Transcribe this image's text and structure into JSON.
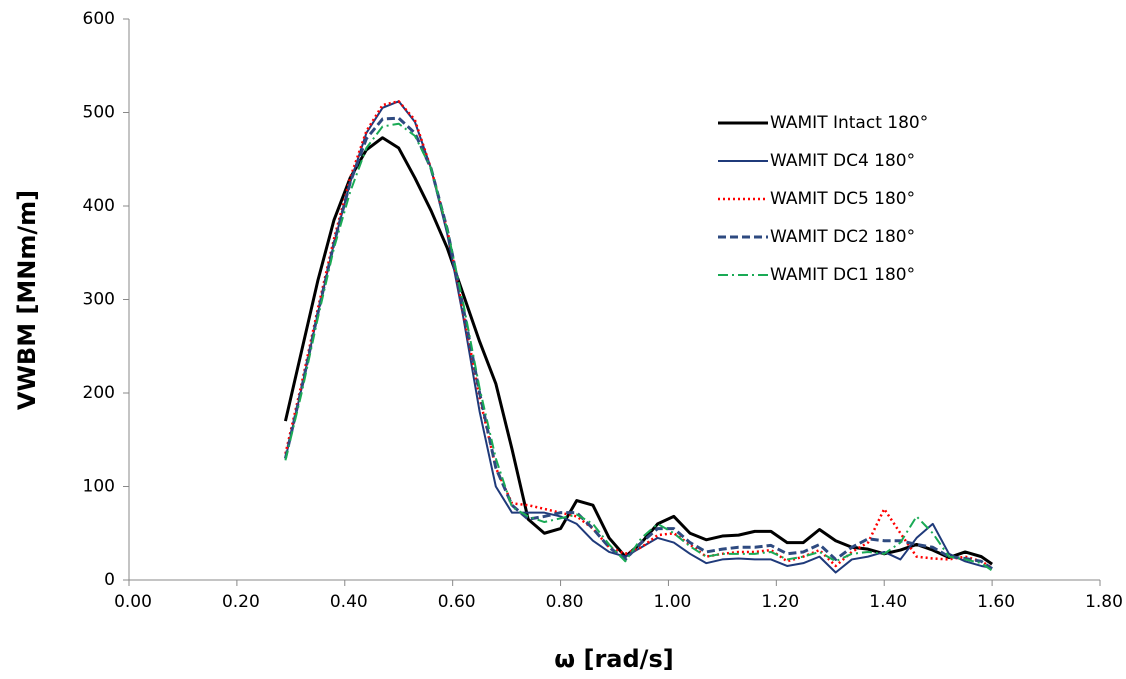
{
  "chart_data": {
    "type": "line",
    "x_label": "ω [rad/s]",
    "y_label": "VWBM [MNm/m]",
    "xlim": [
      0,
      1.8
    ],
    "xticks": [
      {
        "value": 0,
        "label": "0.00"
      },
      {
        "value": 0.2,
        "label": "0.20"
      },
      {
        "value": 0.4,
        "label": "0.40"
      },
      {
        "value": 0.6,
        "label": "0.60"
      },
      {
        "value": 0.8,
        "label": "0.80"
      },
      {
        "value": 1.0,
        "label": "1.00"
      },
      {
        "value": 1.2,
        "label": "1.20"
      },
      {
        "value": 1.4,
        "label": "1.40"
      },
      {
        "value": 1.6,
        "label": "1.60"
      },
      {
        "value": 1.8,
        "label": "1.80"
      }
    ],
    "ylim": [
      0,
      600
    ],
    "yticks": [
      0,
      100,
      200,
      300,
      400,
      500,
      600
    ],
    "legend": "top-right",
    "x": [
      0.29,
      0.32,
      0.35,
      0.38,
      0.41,
      0.44,
      0.47,
      0.5,
      0.53,
      0.56,
      0.59,
      0.62,
      0.65,
      0.68,
      0.71,
      0.74,
      0.77,
      0.8,
      0.83,
      0.86,
      0.89,
      0.92,
      0.95,
      0.98,
      1.01,
      1.04,
      1.07,
      1.1,
      1.13,
      1.16,
      1.19,
      1.22,
      1.25,
      1.28,
      1.31,
      1.34,
      1.37,
      1.4,
      1.43,
      1.46,
      1.49,
      1.52,
      1.55,
      1.58,
      1.6
    ],
    "series": [
      {
        "name": "WAMIT Intact 180°",
        "color": "#000000",
        "dash": "solid",
        "width": 3,
        "values": [
          170,
          245,
          320,
          385,
          430,
          460,
          473,
          462,
          430,
          395,
          355,
          305,
          255,
          210,
          140,
          65,
          50,
          55,
          85,
          80,
          45,
          25,
          40,
          60,
          68,
          50,
          43,
          47,
          48,
          52,
          52,
          40,
          40,
          54,
          42,
          35,
          33,
          28,
          32,
          38,
          32,
          24,
          30,
          25,
          17
        ]
      },
      {
        "name": "WAMIT DC4 180°",
        "color": "#1f3a7a",
        "dash": "solid",
        "width": 2,
        "values": [
          130,
          205,
          285,
          360,
          425,
          478,
          505,
          512,
          490,
          440,
          370,
          280,
          180,
          100,
          72,
          72,
          72,
          68,
          60,
          42,
          30,
          25,
          35,
          45,
          40,
          28,
          18,
          22,
          23,
          22,
          22,
          15,
          18,
          25,
          8,
          22,
          25,
          30,
          22,
          45,
          60,
          28,
          20,
          15,
          13
        ]
      },
      {
        "name": "WAMIT DC5 180°",
        "color": "#ff0000",
        "dash": "dotted",
        "width": 2.5,
        "values": [
          135,
          210,
          290,
          365,
          430,
          480,
          508,
          512,
          492,
          440,
          375,
          285,
          195,
          120,
          82,
          80,
          76,
          72,
          68,
          55,
          35,
          28,
          35,
          48,
          50,
          38,
          25,
          28,
          30,
          30,
          32,
          20,
          25,
          32,
          15,
          30,
          40,
          76,
          50,
          25,
          23,
          22,
          25,
          20,
          13
        ]
      },
      {
        "name": "WAMIT DC2 180°",
        "color": "#2e4a80",
        "dash": "dashed",
        "width": 3,
        "values": [
          130,
          205,
          285,
          360,
          425,
          472,
          493,
          494,
          478,
          440,
          375,
          290,
          200,
          120,
          80,
          65,
          68,
          72,
          72,
          55,
          35,
          22,
          40,
          55,
          55,
          40,
          30,
          33,
          35,
          35,
          37,
          28,
          30,
          38,
          22,
          35,
          44,
          42,
          42,
          38,
          35,
          25,
          23,
          20,
          12
        ]
      },
      {
        "name": "WAMIT DC1 180°",
        "color": "#1aaa55",
        "dash": "dashdot",
        "width": 2,
        "values": [
          128,
          200,
          280,
          355,
          415,
          462,
          485,
          488,
          475,
          440,
          375,
          295,
          205,
          130,
          78,
          68,
          62,
          66,
          70,
          60,
          38,
          20,
          45,
          60,
          50,
          36,
          25,
          28,
          28,
          28,
          30,
          22,
          25,
          30,
          20,
          28,
          30,
          28,
          40,
          68,
          50,
          25,
          22,
          18,
          10
        ]
      }
    ]
  }
}
